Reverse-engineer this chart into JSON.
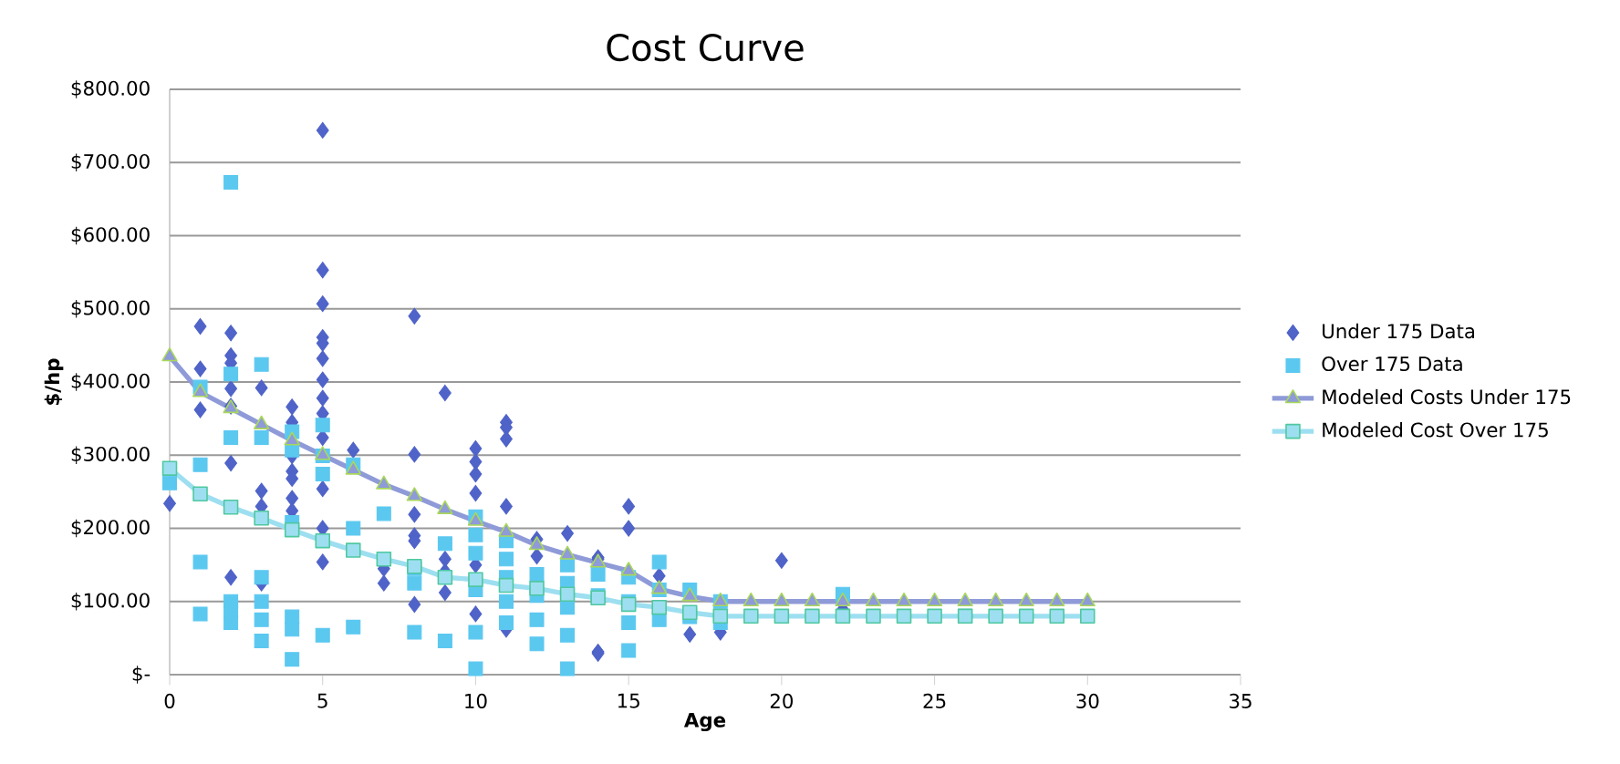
{
  "chart_data": {
    "type": "scatter",
    "title": "Cost Curve",
    "xlabel": "Age",
    "ylabel": "$/hp",
    "xlim": [
      0,
      35
    ],
    "ylim": [
      0,
      800
    ],
    "xticks": [
      0,
      5,
      10,
      15,
      20,
      25,
      30,
      35
    ],
    "yticks": [
      {
        "value": 0,
        "label": "$-"
      },
      {
        "value": 100,
        "label": "$100.00"
      },
      {
        "value": 200,
        "label": "$200.00"
      },
      {
        "value": 300,
        "label": "$300.00"
      },
      {
        "value": 400,
        "label": "$400.00"
      },
      {
        "value": 500,
        "label": "$500.00"
      },
      {
        "value": 600,
        "label": "$600.00"
      },
      {
        "value": 700,
        "label": "$700.00"
      },
      {
        "value": 800,
        "label": "$800.00"
      }
    ],
    "grid": "y",
    "legend": "right",
    "series": [
      {
        "name": "Under 175 Data",
        "marker": "diamond",
        "color": "#4f63c8",
        "x": [
          0,
          1,
          1,
          1,
          2,
          2,
          2,
          2,
          2,
          2,
          2,
          3,
          3,
          3,
          3,
          4,
          4,
          4,
          4,
          4,
          4,
          4,
          5,
          5,
          5,
          5,
          5,
          5,
          5,
          5,
          5,
          5,
          5,
          5,
          5,
          6,
          7,
          7,
          8,
          8,
          8,
          8,
          8,
          8,
          9,
          9,
          9,
          9,
          10,
          10,
          10,
          10,
          10,
          10,
          11,
          11,
          11,
          11,
          11,
          12,
          12,
          13,
          14,
          14,
          14,
          14,
          15,
          15,
          16,
          17,
          18,
          20,
          22
        ],
        "values": [
          234,
          476,
          418,
          362,
          467,
          436,
          426,
          391,
          367,
          289,
          133,
          392,
          251,
          230,
          125,
          366,
          345,
          299,
          278,
          268,
          241,
          224,
          744,
          553,
          507,
          461,
          453,
          432,
          403,
          378,
          357,
          324,
          254,
          200,
          154,
          307,
          125,
          145,
          490,
          301,
          219,
          190,
          183,
          96,
          385,
          158,
          141,
          112,
          309,
          291,
          274,
          248,
          150,
          83,
          345,
          338,
          322,
          230,
          62,
          185,
          162,
          193,
          160,
          31,
          158,
          29,
          230,
          200,
          135,
          55,
          58,
          156,
          89
        ]
      },
      {
        "name": "Over 175 Data",
        "marker": "square",
        "color": "#5bc8f0",
        "x": [
          0,
          1,
          1,
          1,
          1,
          2,
          2,
          2,
          2,
          2,
          2,
          3,
          3,
          3,
          3,
          3,
          3,
          4,
          4,
          4,
          4,
          4,
          4,
          5,
          5,
          5,
          5,
          6,
          6,
          6,
          7,
          8,
          8,
          8,
          9,
          9,
          10,
          10,
          10,
          10,
          10,
          10,
          11,
          11,
          11,
          11,
          11,
          12,
          12,
          12,
          12,
          13,
          13,
          13,
          13,
          13,
          14,
          14,
          15,
          15,
          15,
          15,
          16,
          16,
          16,
          17,
          17,
          18,
          18,
          22,
          26
        ],
        "values": [
          262,
          393,
          287,
          154,
          83,
          673,
          411,
          324,
          100,
          87,
          71,
          424,
          324,
          133,
          100,
          75,
          46,
          332,
          307,
          208,
          79,
          62,
          21,
          341,
          299,
          274,
          54,
          287,
          200,
          65,
          220,
          145,
          125,
          58,
          179,
          46,
          216,
          191,
          166,
          116,
          58,
          8,
          183,
          158,
          133,
          100,
          71,
          137,
          108,
          75,
          42,
          150,
          125,
          92,
          54,
          8,
          137,
          108,
          133,
          100,
          71,
          33,
          154,
          116,
          75,
          116,
          79,
          100,
          71,
          110,
          80
        ]
      },
      {
        "name": "Modeled Costs Under 175",
        "type": "line",
        "marker": "triangle",
        "line_style": "solid",
        "color": "#8f9ad8",
        "x": [
          0,
          1,
          2,
          3,
          4,
          5,
          6,
          7,
          8,
          9,
          10,
          11,
          12,
          13,
          14,
          15,
          16,
          17,
          18,
          19,
          20,
          21,
          22,
          23,
          24,
          25,
          26,
          27,
          28,
          29,
          30
        ],
        "values": [
          435,
          386,
          364,
          342,
          320,
          300,
          280,
          260,
          244,
          226,
          210,
          195,
          177,
          164,
          153,
          142,
          117,
          107,
          100,
          100,
          100,
          100,
          100,
          100,
          100,
          100,
          100,
          100,
          100,
          100,
          100
        ]
      },
      {
        "name": "Modeled Cost Over 175",
        "type": "line",
        "marker": "square",
        "line_style": "solid",
        "color": "#9ddff0",
        "x": [
          0,
          1,
          2,
          3,
          4,
          5,
          6,
          7,
          8,
          9,
          10,
          11,
          12,
          13,
          14,
          15,
          16,
          17,
          18,
          19,
          20,
          21,
          22,
          23,
          24,
          25,
          26,
          27,
          28,
          29,
          30
        ],
        "values": [
          282,
          247,
          229,
          214,
          198,
          183,
          170,
          158,
          148,
          133,
          130,
          122,
          118,
          110,
          105,
          96,
          92,
          85,
          80,
          80,
          80,
          80,
          80,
          80,
          80,
          80,
          80,
          80,
          80,
          80,
          80
        ]
      }
    ]
  }
}
